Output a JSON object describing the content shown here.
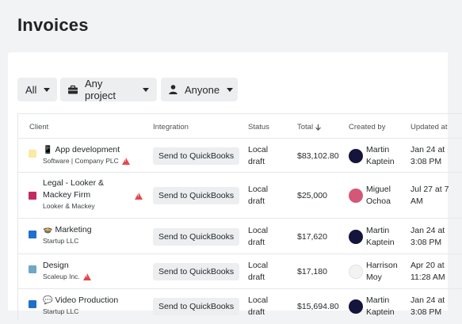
{
  "page": {
    "title": "Invoices"
  },
  "filters": {
    "all": "All",
    "project": "Any project",
    "person": "Anyone"
  },
  "table": {
    "headers": {
      "client": "Client",
      "integration": "Integration",
      "status": "Status",
      "total": "Total",
      "total_sort_icon": "arrow-down-icon",
      "created_by": "Created by",
      "updated_at": "Updated at"
    },
    "rows": [
      {
        "swatch": "#fbe9a4",
        "icon": "📱",
        "name_line1": "App development",
        "name_line2": "",
        "sub": "Software | Company PLC",
        "warning": true,
        "integration": "Send to QuickBooks",
        "status_line1": "Local",
        "status_line2": "draft",
        "total": "$83,102.80",
        "creator_first": "Martin",
        "creator_last": "Kaptein",
        "avatar_color": "#14143c",
        "updated_line1": "Jan 24 at",
        "updated_line2": "3:08 PM"
      },
      {
        "swatch": "#c42a62",
        "icon": "",
        "name_line1": "Legal - Looker &",
        "name_line2": "Mackey Firm",
        "sub": "Looker & Mackey",
        "warning": true,
        "integration": "Send to QuickBooks",
        "status_line1": "Local",
        "status_line2": "draft",
        "total": "$25,000",
        "creator_first": "Miguel",
        "creator_last": "Ochoa",
        "avatar_color": "#d4577a",
        "updated_line1": "Jul 27 at 7",
        "updated_line2": "AM"
      },
      {
        "swatch": "#1e6fd0",
        "icon": "🍲",
        "name_line1": "Marketing",
        "name_line2": "",
        "sub": "Startup LLC",
        "warning": false,
        "integration": "Send to QuickBooks",
        "status_line1": "Local",
        "status_line2": "draft",
        "total": "$17,620",
        "creator_first": "Martin",
        "creator_last": "Kaptein",
        "avatar_color": "#14143c",
        "updated_line1": "Jan 24 at",
        "updated_line2": "3:08 PM"
      },
      {
        "swatch": "#6ea8c4",
        "icon": "",
        "name_line1": "Design",
        "name_line2": "",
        "sub": "Scaleup Inc.",
        "warning": true,
        "integration": "Send to QuickBooks",
        "status_line1": "Local",
        "status_line2": "draft",
        "total": "$17,180",
        "creator_first": "Harrison",
        "creator_last": "Moy",
        "avatar_color": "#f3f3f1",
        "updated_line1": "Apr 20 at",
        "updated_line2": "11:28 AM"
      },
      {
        "swatch": "#1e6fd0",
        "icon": "💬",
        "name_line1": "Video Production",
        "name_line2": "",
        "sub": "Startup LLC",
        "warning": false,
        "integration": "Send to QuickBooks",
        "status_line1": "Local",
        "status_line2": "draft",
        "total": "$15,694.80",
        "creator_first": "Martin",
        "creator_last": "Kaptein",
        "avatar_color": "#14143c",
        "updated_line1": "Jan 24 at",
        "updated_line2": "3:08 PM"
      }
    ]
  }
}
